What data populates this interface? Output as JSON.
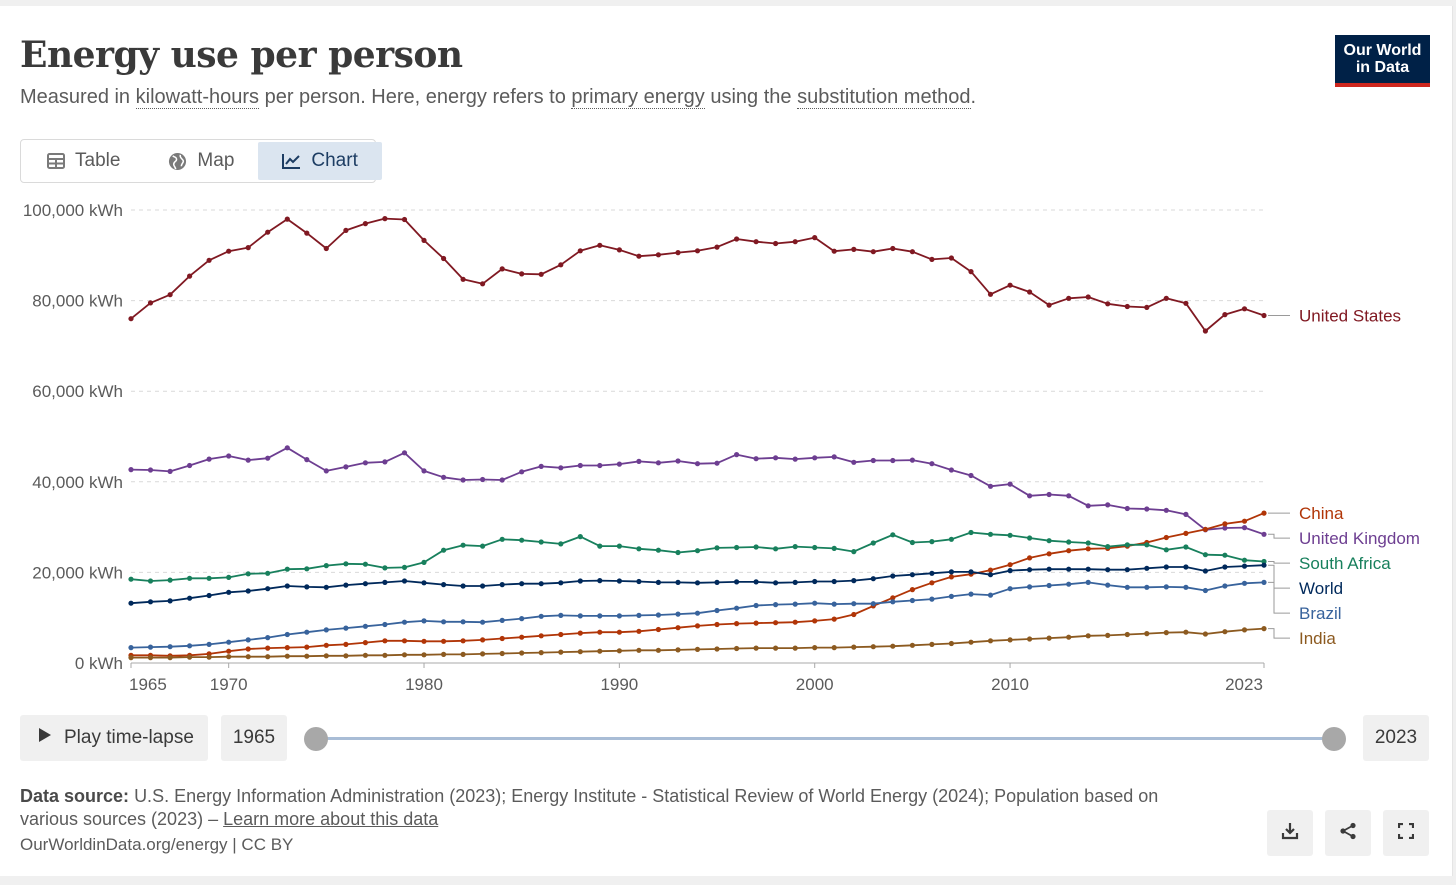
{
  "header": {
    "title": "Energy use per person",
    "subtitle": {
      "p1": "Measured in ",
      "link1": "kilowatt-hours",
      "p2": " per person. Here, energy refers to ",
      "link2": "primary energy",
      "p3": " using the ",
      "link3": "substitution method",
      "p4": "."
    },
    "logo": "Our World\nin Data"
  },
  "tabs": [
    {
      "label": "Table",
      "icon": "table-icon"
    },
    {
      "label": "Map",
      "icon": "globe-icon"
    },
    {
      "label": "Chart",
      "icon": "line-chart-icon",
      "active": true
    }
  ],
  "controls": {
    "play_label": "Play time-lapse",
    "start_year": "1965",
    "end_year": "2023"
  },
  "footer": {
    "source_label": "Data source:",
    "source_text": "U.S. Energy Information Administration (2023); Energy Institute - Statistical Review of World Energy (2024); Population based on various sources (2023) – ",
    "learn_more": "Learn more about this data",
    "credit": "OurWorldinData.org/energy | CC BY",
    "buttons": [
      "download-icon",
      "share-icon",
      "fullscreen-icon"
    ]
  },
  "chart_data": {
    "type": "line",
    "title": "Energy use per person",
    "x": [
      1965,
      1966,
      1967,
      1968,
      1969,
      1970,
      1971,
      1972,
      1973,
      1974,
      1975,
      1976,
      1977,
      1978,
      1979,
      1980,
      1981,
      1982,
      1983,
      1984,
      1985,
      1986,
      1987,
      1988,
      1989,
      1990,
      1991,
      1992,
      1993,
      1994,
      1995,
      1996,
      1997,
      1998,
      1999,
      2000,
      2001,
      2002,
      2003,
      2004,
      2005,
      2006,
      2007,
      2008,
      2009,
      2010,
      2011,
      2012,
      2013,
      2014,
      2015,
      2016,
      2017,
      2018,
      2019,
      2020,
      2021,
      2022,
      2023
    ],
    "x_ticks": [
      "1965",
      "1970",
      "1980",
      "1990",
      "2000",
      "2010",
      "2023"
    ],
    "y_ticks": [
      "0 kWh",
      "20,000 kWh",
      "40,000 kWh",
      "60,000 kWh",
      "80,000 kWh",
      "100,000 kWh"
    ],
    "ylim": [
      0,
      100000
    ],
    "grid": "horizontal dashed",
    "legend": "right, end of lines",
    "series": [
      {
        "name": "United States",
        "color": "#801922",
        "values": [
          76000,
          79500,
          81300,
          85400,
          88900,
          90900,
          91700,
          95100,
          98000,
          94900,
          91500,
          95500,
          97000,
          98100,
          97900,
          93300,
          89300,
          84700,
          83700,
          87000,
          85900,
          85800,
          87900,
          91000,
          92200,
          91200,
          89800,
          90100,
          90600,
          91000,
          91800,
          93600,
          93000,
          92600,
          93000,
          93900,
          90900,
          91300,
          90800,
          91500,
          90800,
          89100,
          89400,
          86400,
          81400,
          83400,
          81900,
          79000,
          80500,
          80800,
          79300,
          78700,
          78500,
          80500,
          79400,
          73300,
          76900,
          78200,
          76700
        ]
      },
      {
        "name": "United Kingdom",
        "color": "#6d3e91",
        "values": [
          42700,
          42600,
          42300,
          43600,
          45000,
          45700,
          44800,
          45200,
          47500,
          44900,
          42400,
          43300,
          44200,
          44400,
          46400,
          42400,
          41000,
          40400,
          40500,
          40400,
          42200,
          43400,
          43100,
          43600,
          43600,
          43900,
          44500,
          44200,
          44600,
          44000,
          44100,
          46000,
          45100,
          45300,
          45000,
          45300,
          45500,
          44300,
          44700,
          44700,
          44800,
          44000,
          42600,
          41400,
          39000,
          39500,
          36900,
          37200,
          36900,
          34700,
          34900,
          34100,
          34000,
          33700,
          32800,
          29400,
          29800,
          29900,
          28400
        ]
      },
      {
        "name": "China",
        "color": "#b13507",
        "values": [
          1700,
          1700,
          1600,
          1700,
          2000,
          2600,
          3100,
          3300,
          3400,
          3500,
          3900,
          4100,
          4500,
          4900,
          4900,
          4800,
          4800,
          4900,
          5100,
          5400,
          5700,
          6000,
          6300,
          6600,
          6800,
          6800,
          7000,
          7400,
          7800,
          8200,
          8500,
          8700,
          8800,
          8900,
          9000,
          9300,
          9700,
          10700,
          12600,
          14400,
          16200,
          17700,
          19000,
          19600,
          20500,
          21700,
          23200,
          24100,
          24800,
          25200,
          25300,
          25800,
          26600,
          27700,
          28600,
          29500,
          30700,
          31300,
          33100
        ]
      },
      {
        "name": "South Africa",
        "color": "#18805d",
        "values": [
          18500,
          18100,
          18300,
          18700,
          18700,
          18900,
          19700,
          19800,
          20700,
          20800,
          21500,
          21900,
          21800,
          21000,
          21100,
          22200,
          24900,
          26000,
          25800,
          27300,
          27100,
          26700,
          26300,
          27900,
          25800,
          25800,
          25200,
          24900,
          24400,
          24800,
          25400,
          25500,
          25600,
          25200,
          25700,
          25500,
          25300,
          24600,
          26500,
          28300,
          26600,
          26800,
          27300,
          28800,
          28400,
          28200,
          27600,
          27000,
          26700,
          26500,
          25700,
          26100,
          26100,
          25000,
          25600,
          23900,
          23800,
          22700,
          22400
        ]
      },
      {
        "name": "World",
        "color": "#00295b",
        "values": [
          13200,
          13500,
          13700,
          14300,
          14900,
          15600,
          15900,
          16400,
          17000,
          16800,
          16700,
          17200,
          17500,
          17800,
          18100,
          17700,
          17300,
          17000,
          17000,
          17300,
          17500,
          17500,
          17700,
          18100,
          18200,
          18100,
          18000,
          17800,
          17800,
          17700,
          17800,
          17900,
          17900,
          17700,
          17800,
          18000,
          18000,
          18200,
          18600,
          19200,
          19500,
          19800,
          20100,
          20100,
          19500,
          20400,
          20600,
          20700,
          20700,
          20700,
          20600,
          20600,
          20900,
          21200,
          21200,
          20300,
          21200,
          21400,
          21600
        ]
      },
      {
        "name": "Brazil",
        "color": "#38639c",
        "values": [
          3400,
          3500,
          3600,
          3800,
          4100,
          4600,
          5100,
          5600,
          6300,
          6800,
          7300,
          7700,
          8100,
          8500,
          9000,
          9300,
          9100,
          9100,
          9000,
          9400,
          9800,
          10300,
          10500,
          10400,
          10400,
          10400,
          10500,
          10600,
          10800,
          11000,
          11600,
          12100,
          12700,
          12900,
          13000,
          13200,
          13000,
          13100,
          13100,
          13500,
          13800,
          14100,
          14700,
          15200,
          15000,
          16400,
          16800,
          17100,
          17400,
          17800,
          17200,
          16700,
          16700,
          16800,
          16700,
          16000,
          17000,
          17600,
          17800
        ]
      },
      {
        "name": "India",
        "color": "#8c5a20",
        "values": [
          1200,
          1200,
          1200,
          1300,
          1300,
          1400,
          1400,
          1400,
          1500,
          1500,
          1600,
          1600,
          1700,
          1700,
          1800,
          1800,
          1900,
          1900,
          2000,
          2100,
          2200,
          2300,
          2400,
          2500,
          2600,
          2700,
          2800,
          2800,
          2900,
          3000,
          3100,
          3200,
          3300,
          3300,
          3300,
          3400,
          3400,
          3500,
          3600,
          3700,
          3900,
          4100,
          4300,
          4600,
          4900,
          5100,
          5300,
          5500,
          5700,
          6000,
          6100,
          6300,
          6500,
          6700,
          6800,
          6400,
          6900,
          7300,
          7600
        ]
      }
    ]
  }
}
